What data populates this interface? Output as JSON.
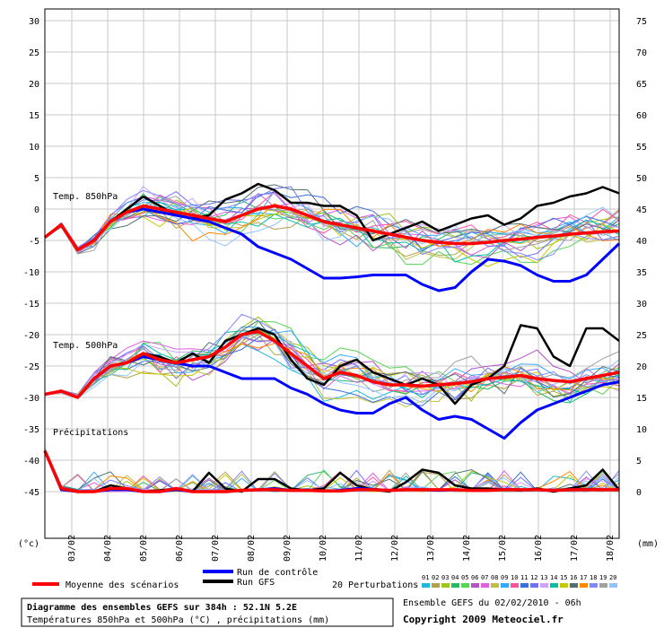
{
  "chart_data": {
    "type": "line",
    "left_axis": {
      "unit": "(°c)",
      "ticks": [
        30,
        25,
        20,
        15,
        10,
        5,
        0,
        -5,
        -10,
        -15,
        -20,
        -25,
        -30,
        -35,
        -40,
        -45
      ],
      "ylim": [
        -45,
        30
      ]
    },
    "right_axis": {
      "unit": "(mm)",
      "ticks": [
        75,
        70,
        65,
        60,
        55,
        50,
        45,
        40,
        35,
        30,
        25,
        20,
        15,
        10,
        5,
        0
      ],
      "ylim": [
        0,
        75
      ]
    },
    "x_ticks": [
      "03/02",
      "04/02",
      "05/02",
      "06/02",
      "07/02",
      "08/02",
      "09/02",
      "10/02",
      "11/02",
      "12/02",
      "13/02",
      "14/02",
      "15/02",
      "16/02",
      "17/02",
      "18/02"
    ],
    "grid": true,
    "panel_labels": {
      "t850": "Temp. 850hPa",
      "t500": "Temp. 500hPa",
      "precip": "Précipitations"
    },
    "x_step_hours": 6,
    "series": [
      {
        "name": "Moyenne des scénarios",
        "panel": "t850",
        "color": "#ff0000",
        "values": [
          -4.5,
          -2.5,
          -6.5,
          -5,
          -2,
          -0.5,
          0.5,
          0,
          -0.5,
          -1,
          -1.5,
          -2,
          -1,
          0,
          0.5,
          0,
          -1,
          -2,
          -2.5,
          -3,
          -3.5,
          -4,
          -4.5,
          -5,
          -5.3,
          -5.5,
          -5.5,
          -5.3,
          -5,
          -4.8,
          -4.5,
          -4.3,
          -4,
          -3.8,
          -3.6,
          -3.5
        ]
      },
      {
        "name": "Run de contrôle",
        "panel": "t850",
        "color": "#0000ff",
        "values": [
          -4.5,
          -2.5,
          -6.5,
          -5,
          -2,
          -0.5,
          0,
          -0.5,
          -1,
          -1.5,
          -2,
          -3,
          -4,
          -6,
          -7,
          -8,
          -9.5,
          -11,
          -11,
          -10.8,
          -10.5,
          -10.5,
          -10.5,
          -12,
          -13,
          -12.5,
          -10,
          -8,
          -8.3,
          -9,
          -10.5,
          -11.5,
          -11.5,
          -10.5,
          -8,
          -5.5
        ]
      },
      {
        "name": "Run GFS",
        "panel": "t850",
        "color": "#000000",
        "values": [
          -4.5,
          -2.5,
          -6.5,
          -5,
          -2,
          0,
          2,
          0.5,
          -1,
          -1.5,
          -1,
          1.5,
          2.5,
          4,
          3,
          1,
          1,
          0.5,
          0.5,
          -1,
          -5,
          -4,
          -3,
          -2,
          -3.5,
          -2.5,
          -1.5,
          -1,
          -2.5,
          -1.5,
          0.5,
          1,
          2,
          2.5,
          3.5,
          2.5
        ]
      },
      {
        "name": "Moyenne des scénarios",
        "panel": "t500",
        "color": "#ff0000",
        "values": [
          -29.5,
          -29,
          -30,
          -27,
          -25,
          -24.5,
          -23,
          -24,
          -24.5,
          -24,
          -23.5,
          -22,
          -20,
          -19.5,
          -21,
          -23,
          -25,
          -27,
          -26,
          -26.5,
          -27.5,
          -28,
          -28,
          -28.2,
          -28,
          -27.8,
          -27.5,
          -27,
          -26.8,
          -26.5,
          -27,
          -27.3,
          -27.5,
          -27,
          -26.5,
          -26
        ]
      },
      {
        "name": "Run de contrôle",
        "panel": "t500",
        "color": "#0000ff",
        "values": [
          -29.5,
          -29,
          -30,
          -27,
          -25,
          -24.5,
          -23.5,
          -24,
          -24.5,
          -25,
          -25,
          -26,
          -27,
          -27,
          -27,
          -28.5,
          -29.5,
          -31,
          -32,
          -32.5,
          -32.5,
          -31,
          -30,
          -32,
          -33.5,
          -33,
          -33.5,
          -35,
          -36.5,
          -34,
          -32,
          -31,
          -30,
          -29,
          -28,
          -27.5
        ]
      },
      {
        "name": "Run GFS",
        "panel": "t500",
        "color": "#000000",
        "values": [
          -29.5,
          -29,
          -30,
          -27,
          -25,
          -24.5,
          -23,
          -23.5,
          -24.5,
          -23,
          -24.5,
          -21,
          -20,
          -19,
          -20,
          -24,
          -27,
          -28,
          -25,
          -24,
          -26,
          -27,
          -28,
          -27,
          -28,
          -31,
          -28,
          -27,
          -25,
          -18.5,
          -19,
          -23.5,
          -25,
          -19,
          -19,
          -21
        ]
      },
      {
        "name": "Moyenne des scénarios",
        "panel": "precip",
        "color": "#ff0000",
        "values": [
          6.5,
          0.5,
          0,
          0,
          0.5,
          0.5,
          0,
          0,
          0.5,
          0,
          0,
          0,
          0.2,
          0.3,
          0.3,
          0.2,
          0.2,
          0.1,
          0.1,
          0.3,
          0.3,
          0.2,
          0.3,
          0.3,
          0.3,
          0.3,
          0.2,
          0.2,
          0.3,
          0.3,
          0.3,
          0.2,
          0.3,
          0.3,
          0.3,
          0.3
        ]
      },
      {
        "name": "Run de contrôle",
        "panel": "precip",
        "color": "#0000ff",
        "values": [
          6.5,
          0.3,
          0,
          0,
          0.3,
          0.3,
          0,
          0,
          0.3,
          0,
          0,
          0,
          0.2,
          0.3,
          0.5,
          0.2,
          0.2,
          0.1,
          0.2,
          0.5,
          0.4,
          0.2,
          0.3,
          0.3,
          0.2,
          0.3,
          0.2,
          0.2,
          0.4,
          0.3,
          0.3,
          0.2,
          0.3,
          0.4,
          0.3,
          0.3
        ]
      },
      {
        "name": "Run GFS",
        "panel": "precip",
        "color": "#000000",
        "values": [
          6.5,
          0.5,
          0,
          0,
          1,
          0.5,
          0,
          0.2,
          0.5,
          0,
          3,
          0.5,
          0,
          2,
          2,
          0.5,
          0.2,
          0.5,
          3,
          1,
          0.3,
          0,
          1.5,
          3.5,
          3,
          1,
          0.5,
          0.5,
          0.3,
          0.2,
          0.5,
          0,
          0.5,
          1,
          3.5,
          0.3
        ]
      }
    ]
  },
  "legend": {
    "mean_label": "Moyenne des scénarios",
    "control_label": "Run de contrôle",
    "gfs_label": "Run GFS",
    "perturbations_label": "20 Perturbations",
    "perturbation_numbers": [
      "01",
      "02",
      "03",
      "04",
      "05",
      "06",
      "07",
      "08",
      "09",
      "10",
      "11",
      "12",
      "13",
      "14",
      "15",
      "16",
      "17",
      "18",
      "19",
      "20"
    ],
    "perturbation_colors": [
      "#1fb8d8",
      "#b4a04a",
      "#a0c418",
      "#22bb66",
      "#55d455",
      "#b850c8",
      "#e060e0",
      "#c0c040",
      "#33aaff",
      "#ff4fa0",
      "#3b6ed8",
      "#6f6fff",
      "#d0a0ff",
      "#00c0a0",
      "#c8c800",
      "#507070",
      "#ff8800",
      "#8088ff",
      "#a0a0a0",
      "#90c4ff"
    ]
  },
  "footer": {
    "title": "Diagramme des ensembles GEFS sur 384h : 52.1N 5.2E",
    "subtitle": "Températures 850hPa et 500hPa (°C) , précipitations (mm)",
    "ensemble": "Ensemble GEFS du 02/02/2010 - 06h",
    "copyright": "Copyright 2009 Meteociel.fr"
  }
}
